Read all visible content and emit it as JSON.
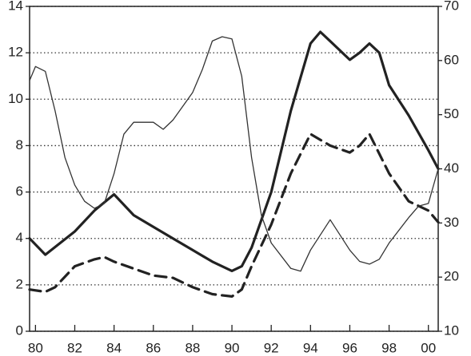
{
  "chart_data": {
    "type": "line",
    "xlim": [
      1979.7,
      2000.5
    ],
    "xticks": [
      {
        "value": 1980,
        "label": "80"
      },
      {
        "value": 1982,
        "label": "82"
      },
      {
        "value": 1984,
        "label": "84"
      },
      {
        "value": 1986,
        "label": "86"
      },
      {
        "value": 1988,
        "label": "88"
      },
      {
        "value": 1990,
        "label": "90"
      },
      {
        "value": 1992,
        "label": "92"
      },
      {
        "value": 1994,
        "label": "94"
      },
      {
        "value": 1996,
        "label": "96"
      },
      {
        "value": 1998,
        "label": "98"
      },
      {
        "value": 2000,
        "label": "00"
      }
    ],
    "ylim": [
      0,
      14
    ],
    "yticks": [
      0,
      2,
      4,
      6,
      8,
      10,
      12,
      14
    ],
    "y2lim": [
      10,
      70
    ],
    "y2ticks": [
      10,
      20,
      30,
      40,
      50,
      60,
      70
    ],
    "grid": true,
    "series": [
      {
        "color": "#222222",
        "width": 3.2,
        "dash": false,
        "x": [
          1979.7,
          1980.5,
          1982,
          1983,
          1984,
          1985,
          1986,
          1987,
          1988,
          1989,
          1990,
          1990.5,
          1991,
          1992,
          1993,
          1994,
          1994.5,
          1995,
          1996,
          1996.5,
          1997,
          1997.5,
          1998,
          1999,
          2000,
          2000.5
        ],
        "values": [
          4.0,
          3.3,
          4.3,
          5.2,
          5.9,
          5.0,
          4.5,
          4.0,
          3.5,
          3.0,
          2.6,
          2.8,
          3.6,
          6.0,
          9.5,
          12.4,
          12.9,
          12.5,
          11.7,
          12.0,
          12.4,
          12.0,
          10.6,
          9.3,
          7.8,
          7.0
        ]
      },
      {
        "color": "#222222",
        "width": 3.2,
        "dash": true,
        "x": [
          1979.7,
          1980.5,
          1981,
          1982,
          1983,
          1983.5,
          1984,
          1985,
          1986,
          1987,
          1988,
          1989,
          1990,
          1990.5,
          1991,
          1992,
          1993,
          1994,
          1995,
          1996,
          1996.5,
          1997,
          1998,
          1999,
          2000,
          2000.5
        ],
        "values": [
          1.8,
          1.7,
          1.9,
          2.8,
          3.1,
          3.2,
          3.0,
          2.7,
          2.4,
          2.3,
          1.9,
          1.6,
          1.5,
          1.8,
          2.8,
          4.6,
          6.8,
          8.5,
          8.0,
          7.7,
          8.0,
          8.5,
          6.8,
          5.6,
          5.2,
          4.7
        ]
      },
      {
        "color": "#333333",
        "width": 1.3,
        "dash": false,
        "axis": "y2",
        "x": [
          1979.7,
          1980,
          1980.5,
          1981,
          1981.5,
          1982,
          1982.5,
          1983,
          1983.5,
          1984,
          1984.5,
          1985,
          1986,
          1986.5,
          1987,
          1988,
          1988.5,
          1989,
          1989.5,
          1990,
          1990.5,
          1991,
          1991.5,
          1992,
          1993,
          1993.5,
          1994,
          1995,
          1996,
          1996.5,
          1997,
          1997.5,
          1998,
          1999,
          1999.5,
          2000,
          2000.5
        ],
        "values": [
          56.3,
          58.9,
          58.0,
          50.7,
          42.1,
          37.0,
          34.0,
          32.7,
          33.6,
          39.1,
          46.4,
          48.6,
          48.6,
          47.3,
          49.0,
          54.1,
          58.4,
          63.6,
          64.4,
          64.0,
          57.1,
          42.1,
          31.4,
          26.3,
          21.6,
          21.1,
          25.0,
          30.6,
          25.0,
          22.9,
          22.4,
          23.3,
          26.3,
          31.0,
          33.1,
          33.6,
          40.0
        ]
      }
    ]
  }
}
